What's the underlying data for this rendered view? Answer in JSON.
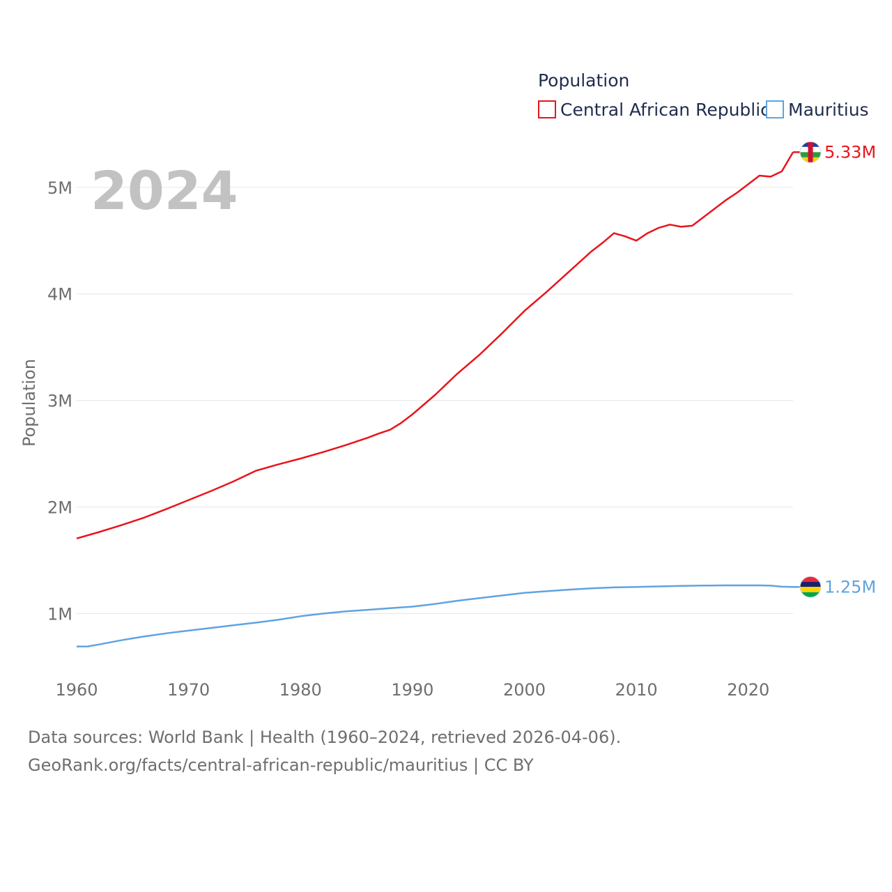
{
  "chart_data": {
    "type": "line",
    "year_label": "2024",
    "legend_title": "Population",
    "ylabel": "Population",
    "xlim": [
      1960,
      2024
    ],
    "ylim": [
      480000,
      5450000
    ],
    "x_ticks": [
      1960,
      1970,
      1980,
      1990,
      2000,
      2010,
      2020
    ],
    "x_tick_labels": [
      "1960",
      "1970",
      "1980",
      "1990",
      "2000",
      "2010",
      "2020"
    ],
    "y_ticks": [
      1000000,
      2000000,
      3000000,
      4000000,
      5000000
    ],
    "y_tick_labels": [
      "1M",
      "2M",
      "3M",
      "4M",
      "5M"
    ],
    "series": [
      {
        "name": "Central African Republic",
        "color": "#e8141c",
        "end_label": "5.33M",
        "flag_icon": "central-african-republic-flag-icon",
        "x": [
          1960,
          1962,
          1964,
          1966,
          1968,
          1970,
          1972,
          1974,
          1975,
          1976,
          1978,
          1980,
          1982,
          1984,
          1986,
          1987,
          1988,
          1989,
          1990,
          1992,
          1994,
          1996,
          1998,
          2000,
          2002,
          2004,
          2006,
          2007,
          2008,
          2009,
          2010,
          2011,
          2012,
          2013,
          2014,
          2015,
          2016,
          2017,
          2018,
          2019,
          2020,
          2021,
          2022,
          2023,
          2024
        ],
        "values": [
          1705000,
          1765000,
          1830000,
          1900000,
          1980000,
          2065000,
          2150000,
          2240000,
          2290000,
          2340000,
          2400000,
          2455000,
          2515000,
          2580000,
          2650000,
          2690000,
          2725000,
          2790000,
          2870000,
          3050000,
          3250000,
          3430000,
          3630000,
          3840000,
          4020000,
          4210000,
          4400000,
          4480000,
          4570000,
          4540000,
          4500000,
          4570000,
          4620000,
          4650000,
          4630000,
          4640000,
          4720000,
          4800000,
          4880000,
          4950000,
          5030000,
          5110000,
          5100000,
          5150000,
          5330000
        ]
      },
      {
        "name": "Mauritius",
        "color": "#5fa3e0",
        "end_label": "1.25M",
        "flag_icon": "mauritius-flag-icon",
        "x": [
          1960,
          1961,
          1962,
          1964,
          1966,
          1968,
          1970,
          1972,
          1974,
          1976,
          1978,
          1980,
          1982,
          1984,
          1986,
          1988,
          1990,
          1992,
          1994,
          1996,
          1998,
          2000,
          2002,
          2004,
          2006,
          2008,
          2010,
          2012,
          2014,
          2016,
          2018,
          2020,
          2021,
          2022,
          2023,
          2024
        ],
        "values": [
          691000,
          692000,
          710000,
          750000,
          785000,
          815000,
          840000,
          865000,
          890000,
          915000,
          942000,
          975000,
          1000000,
          1020000,
          1035000,
          1050000,
          1065000,
          1090000,
          1120000,
          1145000,
          1170000,
          1195000,
          1210000,
          1225000,
          1237000,
          1246000,
          1250000,
          1255000,
          1260000,
          1263000,
          1265000,
          1265000,
          1265000,
          1262000,
          1252000,
          1250000
        ]
      }
    ]
  },
  "footer": {
    "line1": "Data sources: World Bank | Health (1960–2024, retrieved 2026-04-06).",
    "line2": "GeoRank.org/facts/central-african-republic/mauritius | CC BY"
  }
}
